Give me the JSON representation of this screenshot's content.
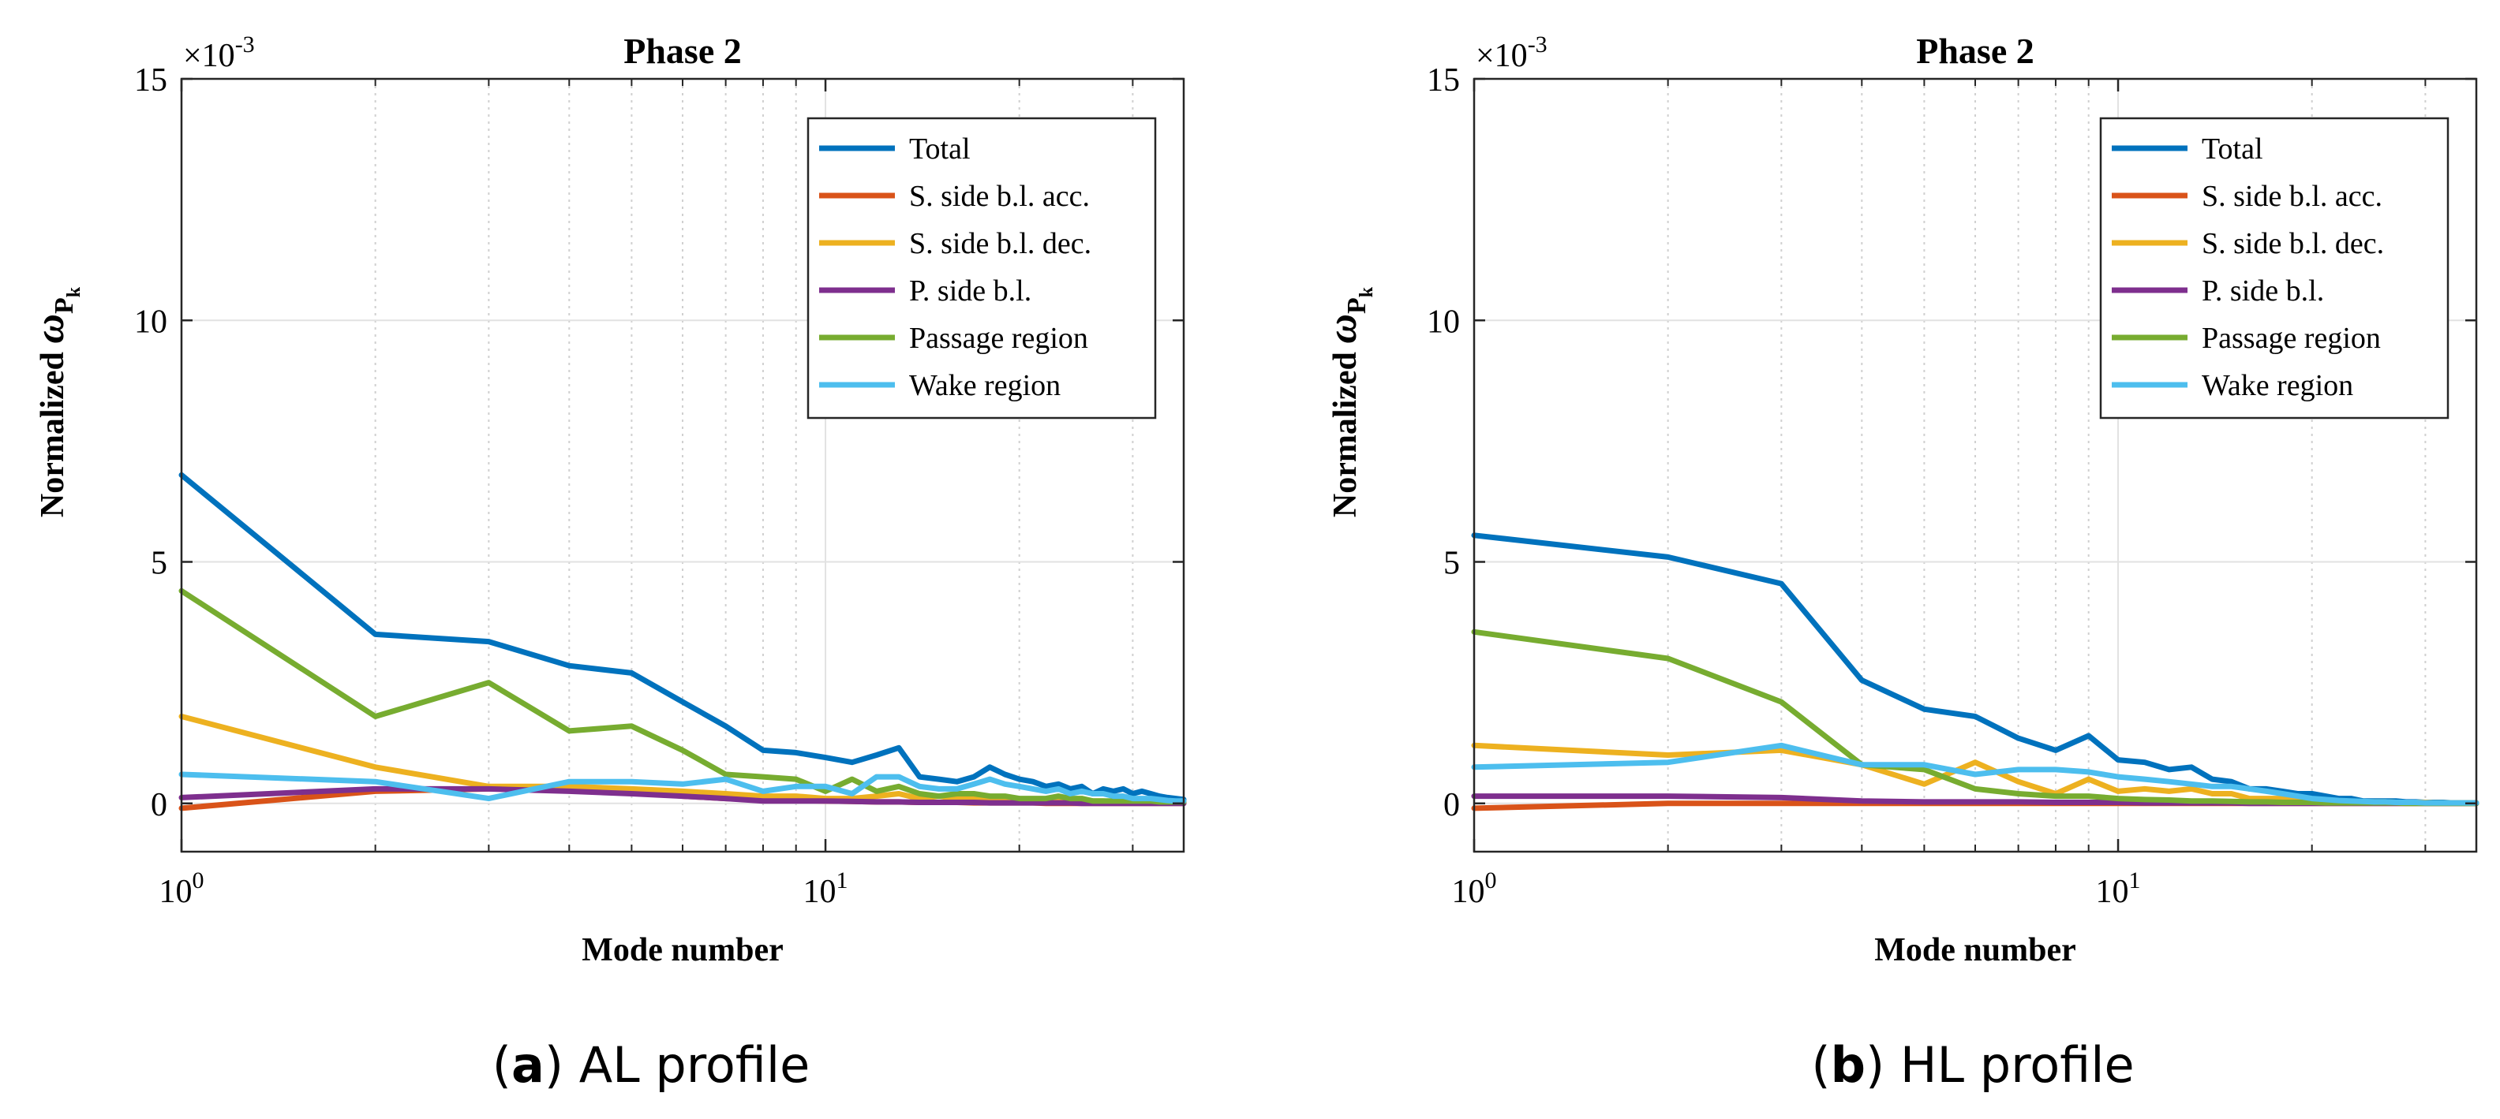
{
  "chart_data": [
    {
      "type": "line",
      "x_scale": "log",
      "title": "Phase 2",
      "xlabel": "Mode number",
      "ylabel_text": "Normalized ",
      "ylabel_symbol": "ω",
      "ylabel_sub": "P",
      "ylabel_subsub": "k",
      "y_exponent_base": "×10",
      "y_exponent_power": "-3",
      "xlim": [
        1,
        36
      ],
      "ylim": [
        -1,
        15
      ],
      "yticks": [
        0,
        5,
        10,
        15
      ],
      "ytick_labels": [
        "0",
        "5",
        "10",
        "15"
      ],
      "xtick_labels": [
        {
          "base": "10",
          "power": "0",
          "value": 1
        },
        {
          "base": "10",
          "power": "1",
          "value": 10
        }
      ],
      "legend_location": "top-right",
      "caption_letter": "(a)",
      "caption_text": "AL profile",
      "series": [
        {
          "name": "Total",
          "color": "#0072BD",
          "x": [
            1,
            2,
            3,
            4,
            5,
            6,
            7,
            8,
            9,
            10,
            11,
            12,
            13,
            14,
            15,
            16,
            17,
            18,
            19,
            20,
            21,
            22,
            23,
            24,
            25,
            26,
            27,
            28,
            29,
            30,
            31,
            32,
            33,
            34,
            35,
            36
          ],
          "y": [
            6.8,
            3.5,
            3.35,
            2.85,
            2.7,
            2.1,
            1.6,
            1.1,
            1.05,
            0.95,
            0.85,
            1.0,
            1.15,
            0.55,
            0.5,
            0.45,
            0.55,
            0.75,
            0.6,
            0.5,
            0.45,
            0.35,
            0.4,
            0.3,
            0.35,
            0.2,
            0.3,
            0.25,
            0.3,
            0.2,
            0.25,
            0.2,
            0.15,
            0.12,
            0.1,
            0.08
          ]
        },
        {
          "name": "S. side b.l. acc.",
          "color": "#D95319",
          "x": [
            1,
            2,
            3,
            4,
            5,
            6,
            7,
            8,
            9,
            10,
            11,
            12,
            13,
            14,
            15,
            16,
            17,
            18,
            19,
            20,
            21,
            22,
            23,
            24,
            25,
            26,
            27,
            28,
            29,
            30,
            31,
            32,
            33,
            34,
            35,
            36
          ],
          "y": [
            -0.1,
            0.25,
            0.3,
            0.35,
            0.25,
            0.15,
            0.1,
            0.08,
            0.06,
            0.05,
            0.04,
            0.03,
            0.03,
            0.02,
            0.02,
            0.02,
            0.01,
            0.01,
            0.01,
            0.01,
            0.01,
            0.0,
            0.0,
            0.0,
            0.0,
            0.0,
            0.0,
            0.0,
            0.0,
            0.0,
            0.0,
            0.0,
            0.0,
            0.0,
            0.0,
            0.0
          ]
        },
        {
          "name": "S. side b.l. dec.",
          "color": "#EDB120",
          "x": [
            1,
            2,
            3,
            4,
            5,
            6,
            7,
            8,
            9,
            10,
            11,
            12,
            13,
            14,
            15,
            16,
            17,
            18,
            19,
            20,
            21,
            22,
            23,
            24,
            25,
            26,
            27,
            28,
            29,
            30,
            31,
            32,
            33,
            34,
            35,
            36
          ],
          "y": [
            1.8,
            0.75,
            0.35,
            0.35,
            0.3,
            0.25,
            0.2,
            0.15,
            0.15,
            0.1,
            0.1,
            0.15,
            0.2,
            0.1,
            0.15,
            0.1,
            0.1,
            0.1,
            0.05,
            0.05,
            0.05,
            0.05,
            0.05,
            0.05,
            0.05,
            0.05,
            0.05,
            0.03,
            0.03,
            0.03,
            0.03,
            0.03,
            0.02,
            0.02,
            0.02,
            0.02
          ]
        },
        {
          "name": "P. side b.l.",
          "color": "#7E2F8E",
          "x": [
            1,
            2,
            3,
            4,
            5,
            6,
            7,
            8,
            9,
            10,
            11,
            12,
            13,
            14,
            15,
            16,
            17,
            18,
            19,
            20,
            21,
            22,
            23,
            24,
            25,
            26,
            27,
            28,
            29,
            30,
            31,
            32,
            33,
            34,
            35,
            36
          ],
          "y": [
            0.12,
            0.3,
            0.3,
            0.25,
            0.2,
            0.15,
            0.1,
            0.05,
            0.05,
            0.05,
            0.04,
            0.03,
            0.03,
            0.02,
            0.02,
            0.02,
            0.02,
            0.01,
            0.01,
            0.01,
            0.01,
            0.01,
            0.01,
            0.01,
            0.0,
            0.0,
            0.0,
            0.0,
            0.0,
            0.0,
            0.0,
            0.0,
            0.0,
            0.0,
            0.0,
            0.0
          ]
        },
        {
          "name": "Passage region",
          "color": "#77AC30",
          "x": [
            1,
            2,
            3,
            4,
            5,
            6,
            7,
            8,
            9,
            10,
            11,
            12,
            13,
            14,
            15,
            16,
            17,
            18,
            19,
            20,
            21,
            22,
            23,
            24,
            25,
            26,
            27,
            28,
            29,
            30,
            31,
            32,
            33,
            34,
            35,
            36
          ],
          "y": [
            4.4,
            1.8,
            2.5,
            1.5,
            1.6,
            1.1,
            0.6,
            0.55,
            0.5,
            0.25,
            0.5,
            0.25,
            0.35,
            0.2,
            0.15,
            0.2,
            0.2,
            0.15,
            0.15,
            0.1,
            0.1,
            0.1,
            0.15,
            0.1,
            0.1,
            0.05,
            0.05,
            0.05,
            0.05,
            0.05,
            0.05,
            0.05,
            0.03,
            0.03,
            0.03,
            0.03
          ]
        },
        {
          "name": "Wake region",
          "color": "#4DBEEE",
          "x": [
            1,
            2,
            3,
            4,
            5,
            6,
            7,
            8,
            9,
            10,
            11,
            12,
            13,
            14,
            15,
            16,
            17,
            18,
            19,
            20,
            21,
            22,
            23,
            24,
            25,
            26,
            27,
            28,
            29,
            30,
            31,
            32,
            33,
            34,
            35,
            36
          ],
          "y": [
            0.6,
            0.45,
            0.1,
            0.45,
            0.45,
            0.4,
            0.5,
            0.25,
            0.35,
            0.35,
            0.2,
            0.55,
            0.55,
            0.35,
            0.3,
            0.3,
            0.4,
            0.5,
            0.4,
            0.35,
            0.3,
            0.25,
            0.3,
            0.2,
            0.25,
            0.2,
            0.2,
            0.15,
            0.15,
            0.1,
            0.1,
            0.1,
            0.08,
            0.06,
            0.05,
            0.05
          ]
        }
      ]
    },
    {
      "type": "line",
      "x_scale": "log",
      "title": "Phase 2",
      "xlabel": "Mode number",
      "ylabel_text": "Normalized ",
      "ylabel_symbol": "ω",
      "ylabel_sub": "P",
      "ylabel_subsub": "k",
      "y_exponent_base": "×10",
      "y_exponent_power": "-3",
      "xlim": [
        1,
        36
      ],
      "ylim": [
        -1,
        15
      ],
      "yticks": [
        0,
        5,
        10,
        15
      ],
      "ytick_labels": [
        "0",
        "5",
        "10",
        "15"
      ],
      "xtick_labels": [
        {
          "base": "10",
          "power": "0",
          "value": 1
        },
        {
          "base": "10",
          "power": "1",
          "value": 10
        }
      ],
      "legend_location": "top-right",
      "caption_letter": "(b)",
      "caption_text": "HL profile",
      "series": [
        {
          "name": "Total",
          "color": "#0072BD",
          "x": [
            1,
            2,
            3,
            4,
            5,
            6,
            7,
            8,
            9,
            10,
            11,
            12,
            13,
            14,
            15,
            16,
            17,
            18,
            19,
            20,
            21,
            22,
            23,
            24,
            25,
            26,
            27,
            28,
            29,
            30,
            31,
            32,
            33,
            34,
            35,
            36
          ],
          "y": [
            5.55,
            5.1,
            4.55,
            2.55,
            1.95,
            1.8,
            1.35,
            1.1,
            1.4,
            0.9,
            0.85,
            0.7,
            0.75,
            0.5,
            0.45,
            0.3,
            0.3,
            0.25,
            0.2,
            0.2,
            0.15,
            0.1,
            0.1,
            0.05,
            0.05,
            0.05,
            0.05,
            0.03,
            0.03,
            0.02,
            0.02,
            0.02,
            0.01,
            0.01,
            0.01,
            0.01
          ]
        },
        {
          "name": "S. side b.l. acc.",
          "color": "#D95319",
          "x": [
            1,
            2,
            3,
            4,
            5,
            6,
            7,
            8,
            9,
            10,
            11,
            12,
            13,
            14,
            15,
            16,
            17,
            18,
            19,
            20,
            21,
            22,
            23,
            24,
            25,
            26,
            27,
            28,
            29,
            30,
            31,
            32,
            33,
            34,
            35,
            36
          ],
          "y": [
            -0.1,
            0.0,
            0.0,
            0.0,
            0.0,
            0.0,
            0.0,
            0.0,
            0.0,
            0.0,
            0.0,
            0.0,
            0.0,
            0.0,
            0.0,
            0.0,
            0.0,
            0.0,
            0.0,
            0.0,
            0.0,
            0.0,
            0.0,
            0.0,
            0.0,
            0.0,
            0.0,
            0.0,
            0.0,
            0.0,
            0.0,
            0.0,
            0.0,
            0.0,
            0.0,
            0.0
          ]
        },
        {
          "name": "S. side b.l. dec.",
          "color": "#EDB120",
          "x": [
            1,
            2,
            3,
            4,
            5,
            6,
            7,
            8,
            9,
            10,
            11,
            12,
            13,
            14,
            15,
            16,
            17,
            18,
            19,
            20,
            21,
            22,
            23,
            24,
            25,
            26,
            27,
            28,
            29,
            30,
            31,
            32,
            33,
            34,
            35,
            36
          ],
          "y": [
            1.2,
            1.0,
            1.1,
            0.8,
            0.4,
            0.85,
            0.45,
            0.2,
            0.5,
            0.25,
            0.3,
            0.25,
            0.3,
            0.2,
            0.2,
            0.1,
            0.1,
            0.1,
            0.05,
            0.05,
            0.05,
            0.05,
            0.03,
            0.03,
            0.03,
            0.03,
            0.02,
            0.02,
            0.02,
            0.02,
            0.01,
            0.01,
            0.01,
            0.01,
            0.01,
            0.01
          ]
        },
        {
          "name": "P. side b.l.",
          "color": "#7E2F8E",
          "x": [
            1,
            2,
            3,
            4,
            5,
            6,
            7,
            8,
            9,
            10,
            11,
            12,
            13,
            14,
            15,
            16,
            17,
            18,
            19,
            20,
            21,
            22,
            23,
            24,
            25,
            26,
            27,
            28,
            29,
            30,
            31,
            32,
            33,
            34,
            35,
            36
          ],
          "y": [
            0.15,
            0.15,
            0.12,
            0.05,
            0.03,
            0.03,
            0.03,
            0.02,
            0.02,
            0.02,
            0.01,
            0.01,
            0.01,
            0.01,
            0.01,
            0.0,
            0.0,
            0.0,
            0.0,
            0.0,
            0.0,
            0.0,
            0.0,
            0.0,
            0.0,
            0.0,
            0.0,
            0.0,
            0.0,
            0.0,
            0.0,
            0.0,
            0.0,
            0.0,
            0.0,
            0.0
          ]
        },
        {
          "name": "Passage region",
          "color": "#77AC30",
          "x": [
            1,
            2,
            3,
            4,
            5,
            6,
            7,
            8,
            9,
            10,
            11,
            12,
            13,
            14,
            15,
            16,
            17,
            18,
            19,
            20,
            21,
            22,
            23,
            24,
            25,
            26,
            27,
            28,
            29,
            30,
            31,
            32,
            33,
            34,
            35,
            36
          ],
          "y": [
            3.55,
            3.0,
            2.1,
            0.8,
            0.7,
            0.3,
            0.2,
            0.15,
            0.15,
            0.1,
            0.08,
            0.07,
            0.05,
            0.05,
            0.04,
            0.03,
            0.03,
            0.02,
            0.02,
            0.02,
            0.01,
            0.01,
            0.01,
            0.01,
            0.01,
            0.01,
            0.01,
            0.0,
            0.0,
            0.0,
            0.0,
            0.0,
            0.0,
            0.0,
            0.0,
            0.0
          ]
        },
        {
          "name": "Wake region",
          "color": "#4DBEEE",
          "x": [
            1,
            2,
            3,
            4,
            5,
            6,
            7,
            8,
            9,
            10,
            11,
            12,
            13,
            14,
            15,
            16,
            17,
            18,
            19,
            20,
            21,
            22,
            23,
            24,
            25,
            26,
            27,
            28,
            29,
            30,
            31,
            32,
            33,
            34,
            35,
            36
          ],
          "y": [
            0.75,
            0.85,
            1.2,
            0.8,
            0.8,
            0.6,
            0.7,
            0.7,
            0.65,
            0.55,
            0.5,
            0.45,
            0.4,
            0.35,
            0.35,
            0.3,
            0.25,
            0.2,
            0.15,
            0.1,
            0.08,
            0.06,
            0.05,
            0.04,
            0.03,
            0.03,
            0.02,
            0.02,
            0.02,
            0.01,
            0.01,
            0.01,
            0.01,
            0.01,
            0.01,
            0.01
          ]
        }
      ]
    }
  ]
}
